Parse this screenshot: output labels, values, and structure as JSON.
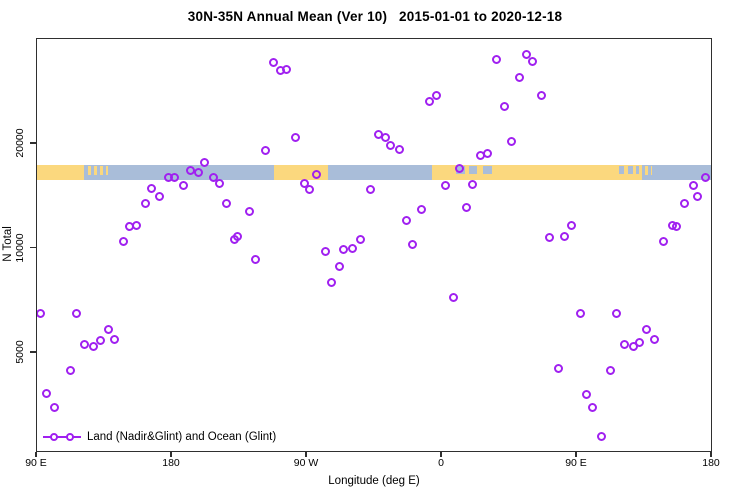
{
  "title": "30N-35N Annual Mean (Ver 10)   2015-01-01 to 2020-12-18",
  "legend": {
    "label": "Land (Nadir&Glint) and Ocean (Glint)"
  },
  "colors": {
    "point": "#A020F0",
    "land": "#FBD87E",
    "ocean": "#A9BDD9",
    "axis": "#2F2F2F",
    "text": "#000000",
    "background": "#FFFFFF"
  },
  "chart_data": {
    "type": "scatter",
    "title": "30N-35N Annual Mean (Ver 10)   2015-01-01 to 2020-12-18",
    "xlabel": "Longitude (deg E)",
    "ylabel": "N Total",
    "y_scale": "log",
    "grid": false,
    "x_axis_note": "axis wraps eastward: 90E > 180 > 90W > 0 > 90E > 180; x stored as degrees east of the left edge (90E), span 0-450",
    "x_ticks": [
      {
        "deg": 0,
        "label": "90 E"
      },
      {
        "deg": 90,
        "label": "180"
      },
      {
        "deg": 180,
        "label": "90 W"
      },
      {
        "deg": 270,
        "label": "0"
      },
      {
        "deg": 360,
        "label": "90 E"
      },
      {
        "deg": 450,
        "label": "180"
      }
    ],
    "y_ticks": [
      {
        "value": 5000,
        "label": "5000"
      },
      {
        "value": 10000,
        "label": "10000"
      },
      {
        "value": 20000,
        "label": "20000"
      }
    ],
    "y_range": [
      2610,
      39750
    ],
    "map_band": {
      "description": "30N-35N latitude world strip drawn across the plot; tan = land, blue = ocean",
      "value_top": 17400,
      "value_bottom": 15800,
      "segments": [
        {
          "from": 0,
          "to": 31.5,
          "kind": "land"
        },
        {
          "from": 34,
          "to": 36,
          "kind": "land-speck"
        },
        {
          "from": 38,
          "to": 40,
          "kind": "land-speck"
        },
        {
          "from": 42,
          "to": 44,
          "kind": "land-speck"
        },
        {
          "from": 46,
          "to": 47,
          "kind": "land-speck"
        },
        {
          "from": 158,
          "to": 194,
          "kind": "land"
        },
        {
          "from": 263,
          "to": 403,
          "kind": "land"
        },
        {
          "from": 279,
          "to": 285,
          "kind": "ocean-speck"
        },
        {
          "from": 288,
          "to": 293,
          "kind": "ocean-speck"
        },
        {
          "from": 297,
          "to": 303,
          "kind": "ocean-speck"
        },
        {
          "from": 388,
          "to": 391,
          "kind": "ocean-speck"
        },
        {
          "from": 394,
          "to": 397,
          "kind": "ocean-speck"
        },
        {
          "from": 399,
          "to": 401,
          "kind": "ocean-speck"
        },
        {
          "from": 405,
          "to": 407,
          "kind": "land-speck"
        },
        {
          "from": 409,
          "to": 410,
          "kind": "land-speck"
        }
      ]
    },
    "points": [
      [
        3,
        6480
      ],
      [
        7,
        3810
      ],
      [
        12,
        3470
      ],
      [
        23,
        4440
      ],
      [
        27,
        6480
      ],
      [
        32,
        5270
      ],
      [
        38,
        5200
      ],
      [
        43,
        5410
      ],
      [
        48,
        5820
      ],
      [
        52,
        5450
      ],
      [
        58,
        10400
      ],
      [
        62,
        11500
      ],
      [
        67,
        11600
      ],
      [
        73,
        13400
      ],
      [
        77,
        14800
      ],
      [
        82,
        14100
      ],
      [
        88,
        16000
      ],
      [
        92,
        15900
      ],
      [
        98,
        15100
      ],
      [
        103,
        16700
      ],
      [
        108,
        16500
      ],
      [
        112,
        17600
      ],
      [
        118,
        15900
      ],
      [
        122,
        15300
      ],
      [
        127,
        13400
      ],
      [
        132,
        10600
      ],
      [
        134,
        10800
      ],
      [
        142,
        12700
      ],
      [
        146,
        9270
      ],
      [
        153,
        19100
      ],
      [
        158,
        34200
      ],
      [
        163,
        32500
      ],
      [
        167,
        32700
      ],
      [
        173,
        20800
      ],
      [
        179,
        15300
      ],
      [
        182,
        14700
      ],
      [
        187,
        16300
      ],
      [
        193,
        9770
      ],
      [
        197,
        7960
      ],
      [
        202,
        8850
      ],
      [
        205,
        9880
      ],
      [
        211,
        9970
      ],
      [
        216,
        10600
      ],
      [
        223,
        14700
      ],
      [
        228,
        21200
      ],
      [
        233,
        20800
      ],
      [
        236,
        19700
      ],
      [
        242,
        19200
      ],
      [
        247,
        12000
      ],
      [
        251,
        10200
      ],
      [
        257,
        12900
      ],
      [
        262,
        26400
      ],
      [
        267,
        27500
      ],
      [
        273,
        15100
      ],
      [
        278,
        7200
      ],
      [
        282,
        16900
      ],
      [
        287,
        13100
      ],
      [
        291,
        15200
      ],
      [
        296,
        18400
      ],
      [
        301,
        18700
      ],
      [
        307,
        34900
      ],
      [
        312,
        25600
      ],
      [
        317,
        20300
      ],
      [
        322,
        31000
      ],
      [
        327,
        36100
      ],
      [
        331,
        34500
      ],
      [
        337,
        27500
      ],
      [
        342,
        10700
      ],
      [
        348,
        4500
      ],
      [
        352,
        10800
      ],
      [
        357,
        11600
      ],
      [
        363,
        6460
      ],
      [
        367,
        3790
      ],
      [
        371,
        3470
      ],
      [
        377,
        2860
      ],
      [
        383,
        4440
      ],
      [
        387,
        6480
      ],
      [
        392,
        5270
      ],
      [
        398,
        5200
      ],
      [
        402,
        5350
      ],
      [
        407,
        5820
      ],
      [
        412,
        5450
      ],
      [
        418,
        10400
      ],
      [
        424,
        11600
      ],
      [
        427,
        11500
      ],
      [
        432,
        13400
      ],
      [
        438,
        15100
      ],
      [
        441,
        14100
      ],
      [
        446,
        15900
      ]
    ]
  }
}
